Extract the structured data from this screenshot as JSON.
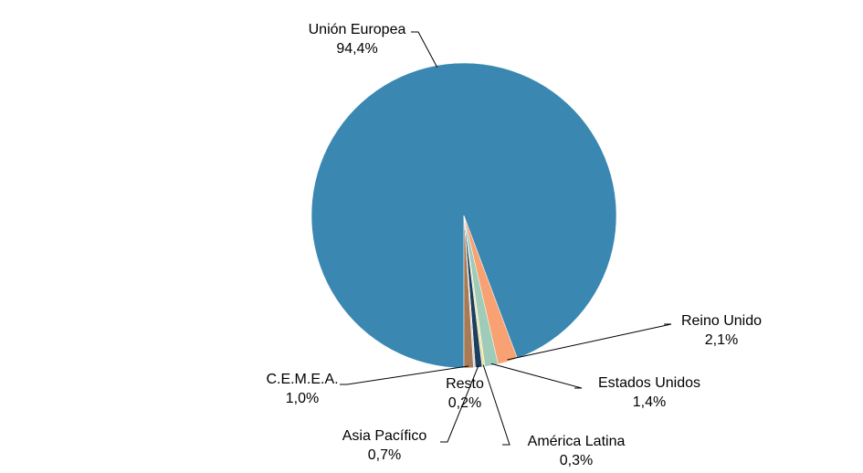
{
  "chart_data": {
    "type": "pie",
    "categories": [
      "Unión Europea",
      "Reino Unido",
      "Estados Unidos",
      "América Latina",
      "Asia Pacífico",
      "Resto",
      "C.E.M.E.A."
    ],
    "values": [
      94.4,
      2.1,
      1.4,
      0.3,
      0.7,
      0.2,
      1.0
    ],
    "value_labels": [
      "94,4%",
      "2,1%",
      "1,4%",
      "0,3%",
      "0,7%",
      "0,2%",
      "1,0%"
    ],
    "colors": [
      "#3a88b1",
      "#f8a274",
      "#9fcbb9",
      "#efe3a6",
      "#1c3f5f",
      "#d9d9d9",
      "#a97b55"
    ]
  }
}
